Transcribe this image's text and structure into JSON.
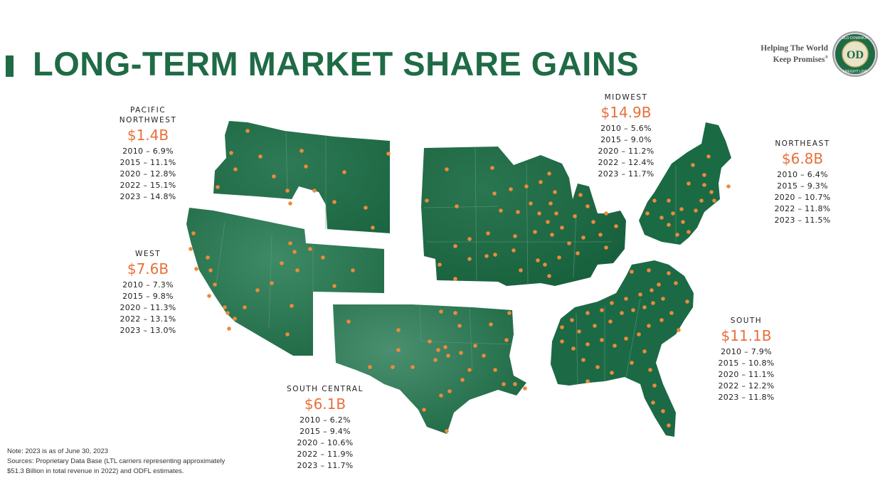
{
  "header": {
    "title": "LONG-TERM MARKET SHARE GAINS",
    "tagline_line1": "Helping The World",
    "tagline_line2": "Keep Promises",
    "tagline_mark": "®"
  },
  "logo": {
    "icon": "old-dominion-freight-line-seal",
    "top_text": "OLD DOMINION",
    "monogram": "OD",
    "bottom_text": "FREIGHT LINE"
  },
  "colors": {
    "brand_green": "#1f6b46",
    "map_green": "#1e6b45",
    "value_orange": "#e8703a",
    "dot_orange": "#ee8a3c"
  },
  "regions": [
    {
      "id": "pacific-northwest",
      "name_line1": "PACIFIC",
      "name_line2": "NORTHWEST",
      "value": "$1.4B",
      "stats": [
        "2010 – 6.9%",
        "2015 – 11.1%",
        "2020 – 12.8%",
        "2022 – 15.1%",
        "2023 – 14.8%"
      ]
    },
    {
      "id": "west",
      "name_line1": "WEST",
      "name_line2": "",
      "value": "$7.6B",
      "stats": [
        "2010 – 7.3%",
        "2015 – 9.8%",
        "2020 – 11.3%",
        "2022 – 13.1%",
        "2023 – 13.0%"
      ]
    },
    {
      "id": "midwest",
      "name_line1": "MIDWEST",
      "name_line2": "",
      "value": "$14.9B",
      "stats": [
        "2010 – 5.6%",
        "2015 – 9.0%",
        "2020 – 11.2%",
        "2022 – 12.4%",
        "2023 – 11.7%"
      ]
    },
    {
      "id": "northeast",
      "name_line1": "NORTHEAST",
      "name_line2": "",
      "value": "$6.8B",
      "stats": [
        "2010 – 6.4%",
        "2015 – 9.3%",
        "2020 – 10.7%",
        "2022 – 11.8%",
        "2023 – 11.5%"
      ]
    },
    {
      "id": "south",
      "name_line1": "SOUTH",
      "name_line2": "",
      "value": "$11.1B",
      "stats": [
        "2010 – 7.9%",
        "2015 – 10.8%",
        "2020 – 11.1%",
        "2022 – 12.2%",
        "2023 – 11.8%"
      ]
    },
    {
      "id": "south-central",
      "name_line1": "SOUTH CENTRAL",
      "name_line2": "",
      "value": "$6.1B",
      "stats": [
        "2010 – 6.2%",
        "2015 – 9.4%",
        "2020 – 10.6%",
        "2022 – 11.9%",
        "2023 – 11.7%"
      ]
    }
  ],
  "notes": {
    "line1": "Note:  2023 is as of June 30, 2023",
    "line2": "Sources: Proprietary Data Base (LTL carriers representing approximately",
    "line3": "$51.3 Billion in total revenue in 2022) and ODFL estimates."
  }
}
